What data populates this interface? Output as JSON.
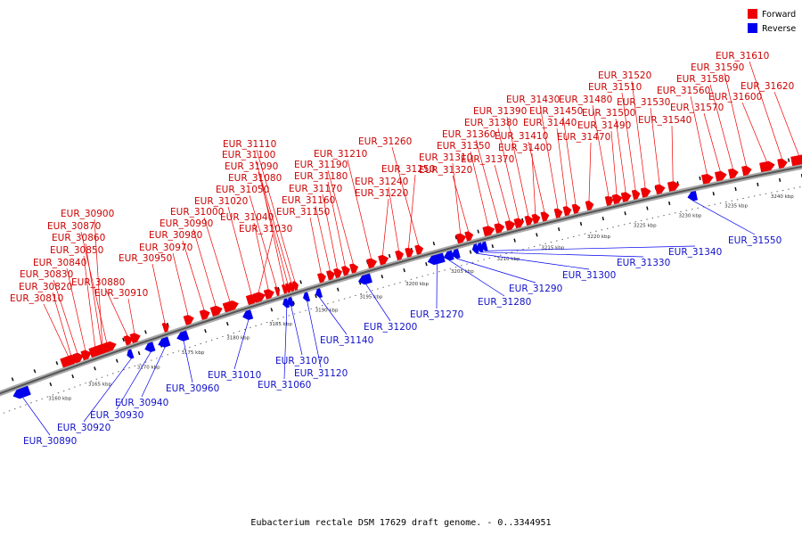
{
  "caption": "Eubacterium rectale DSM 17629 draft genome. - 0..3344951",
  "legend": [
    {
      "label": "Forward",
      "color": "#ee0000"
    },
    {
      "label": "Reverse",
      "color": "#0000ee"
    }
  ],
  "colors": {
    "forward": "#ee0000",
    "reverse": "#0000ee",
    "backbone": "#555555"
  },
  "scale": {
    "ticks": [
      "3160 kbp",
      "3165 kbp",
      "3170 kbp",
      "3175 kbp",
      "3180 kbp",
      "3185 kbp",
      "3190 kbp",
      "3195 kbp",
      "3200 kbp",
      "3205 kbp",
      "3210 kbp",
      "3215 kbp",
      "3220 kbp",
      "3225 kbp",
      "3230 kbp",
      "3235 kbp",
      "3240 kbp"
    ]
  },
  "forward_genes": [
    "EUR_30810",
    "EUR_30820",
    "EUR_30830",
    "EUR_30840",
    "EUR_30850",
    "EUR_30860",
    "EUR_30870",
    "EUR_30880",
    "EUR_30900",
    "EUR_30910",
    "EUR_30950",
    "EUR_30970",
    "EUR_30980",
    "EUR_30990",
    "EUR_31000",
    "EUR_31020",
    "EUR_31030",
    "EUR_31040",
    "EUR_31050",
    "EUR_31080",
    "EUR_31090",
    "EUR_31100",
    "EUR_31110",
    "EUR_31150",
    "EUR_31160",
    "EUR_31170",
    "EUR_31180",
    "EUR_31190",
    "EUR_31210",
    "EUR_31220",
    "EUR_31240",
    "EUR_31250",
    "EUR_31260",
    "EUR_31310",
    "EUR_31320",
    "EUR_31350",
    "EUR_31360",
    "EUR_31370",
    "EUR_31380",
    "EUR_31390",
    "EUR_31400",
    "EUR_31410",
    "EUR_31430",
    "EUR_31440",
    "EUR_31450",
    "EUR_31470",
    "EUR_31480",
    "EUR_31490",
    "EUR_31500",
    "EUR_31510",
    "EUR_31520",
    "EUR_31530",
    "EUR_31540",
    "EUR_31560",
    "EUR_31570",
    "EUR_31580",
    "EUR_31590",
    "EUR_31600",
    "EUR_31610",
    "EUR_31620"
  ],
  "reverse_genes": [
    "EUR_30890",
    "EUR_30920",
    "EUR_30930",
    "EUR_30940",
    "EUR_30960",
    "EUR_31010",
    "EUR_31060",
    "EUR_31070",
    "EUR_31120",
    "EUR_31140",
    "EUR_31200",
    "EUR_31270",
    "EUR_31280",
    "EUR_31290",
    "EUR_31300",
    "EUR_31330",
    "EUR_31340",
    "EUR_31550"
  ]
}
